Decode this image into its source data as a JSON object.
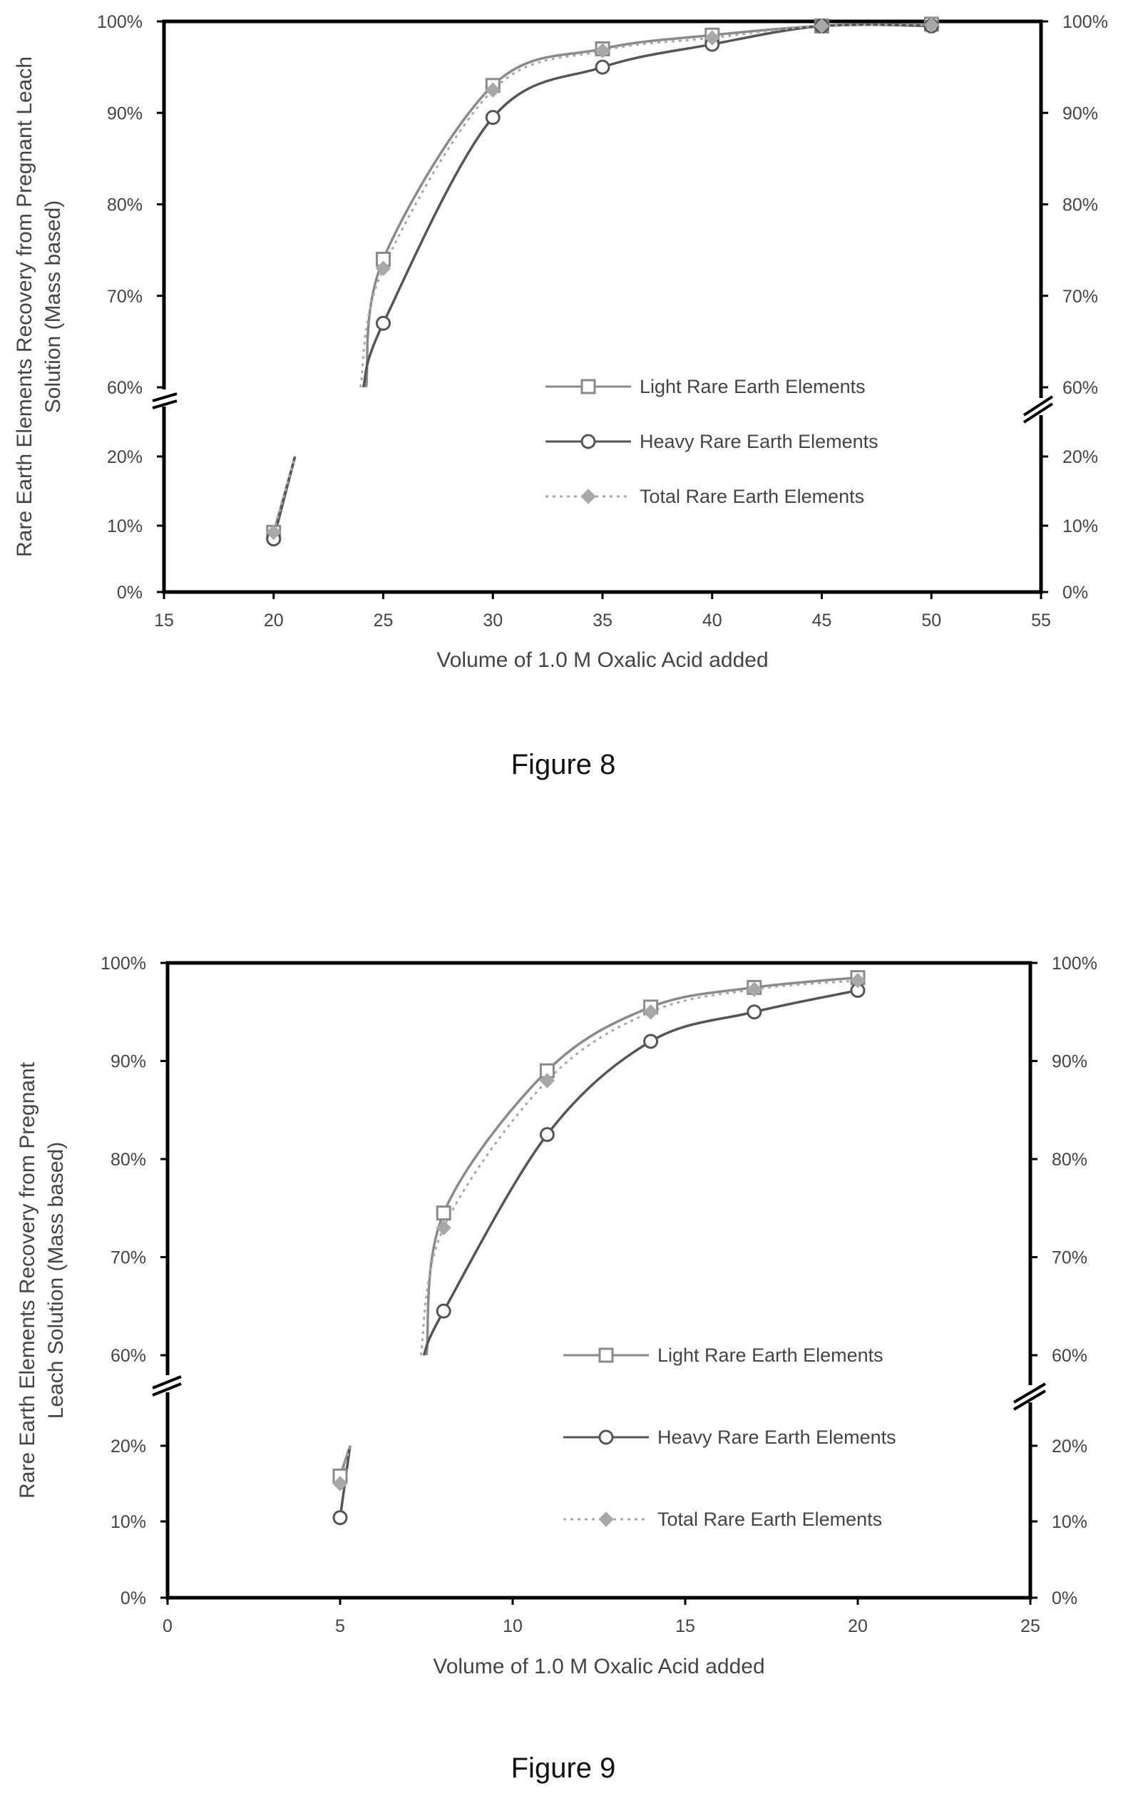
{
  "figures": [
    {
      "caption": "Figure 8"
    },
    {
      "caption": "Figure 9"
    }
  ],
  "chart_data": [
    {
      "type": "line",
      "title": "",
      "xlabel": "Volume of 1.0 M Oxalic Acid added",
      "ylabel_lines": [
        "Rare Earth Elements Recovery from Pregnant Leach",
        "Solution (Mass based)"
      ],
      "xlim": [
        15,
        55
      ],
      "x_ticks": [
        "15",
        "20",
        "25",
        "30",
        "35",
        "40",
        "45",
        "50",
        "55"
      ],
      "y_ticks_lower": [
        "0%",
        "10%",
        "20%"
      ],
      "y_ticks_upper": [
        "60%",
        "70%",
        "80%",
        "90%",
        "100%"
      ],
      "y_axis_break": true,
      "x": [
        20,
        25,
        30,
        35,
        40,
        45,
        50
      ],
      "series": [
        {
          "name": "Light Rare Earth Elements",
          "marker": "square",
          "line": "solid",
          "color": "#8a8a8a",
          "values": [
            9,
            74,
            93,
            97,
            98.5,
            99.5,
            99.7
          ]
        },
        {
          "name": "Heavy Rare Earth Elements",
          "marker": "circle",
          "line": "solid",
          "color": "#555555",
          "values": [
            8,
            67,
            89.5,
            95,
            97.5,
            99.5,
            99.5
          ]
        },
        {
          "name": "Total Rare Earth Elements",
          "marker": "diamond",
          "line": "dotted",
          "color": "#a8a8a8",
          "values": [
            9,
            73,
            92.5,
            96.8,
            98.2,
            99.5,
            99.6
          ]
        }
      ],
      "legend": "right-bottom",
      "grid": false
    },
    {
      "type": "line",
      "title": "",
      "xlabel": "Volume of 1.0 M Oxalic Acid added",
      "ylabel_lines": [
        "Rare Earth Elements Recovery from Pregnant",
        "Leach Solution (Mass based)"
      ],
      "xlim": [
        0,
        25
      ],
      "x_ticks": [
        "0",
        "5",
        "10",
        "15",
        "20",
        "25"
      ],
      "y_ticks_lower": [
        "0%",
        "10%",
        "20%"
      ],
      "y_ticks_upper": [
        "60%",
        "70%",
        "80%",
        "90%",
        "100%"
      ],
      "y_axis_break": true,
      "x": [
        5,
        8,
        11,
        14,
        17,
        20
      ],
      "series": [
        {
          "name": "Light Rare Earth Elements",
          "marker": "square",
          "line": "solid",
          "color": "#8a8a8a",
          "values": [
            16,
            74.5,
            89,
            95.5,
            97.5,
            98.5
          ]
        },
        {
          "name": "Heavy Rare Earth Elements",
          "marker": "circle",
          "line": "solid",
          "color": "#555555",
          "values": [
            10.5,
            64.5,
            82.5,
            92,
            95,
            97.2
          ]
        },
        {
          "name": "Total Rare Earth Elements",
          "marker": "diamond",
          "line": "dotted",
          "color": "#a8a8a8",
          "values": [
            15,
            73,
            88,
            95,
            97.3,
            98.2
          ]
        }
      ],
      "legend": "right-bottom",
      "grid": false
    }
  ]
}
